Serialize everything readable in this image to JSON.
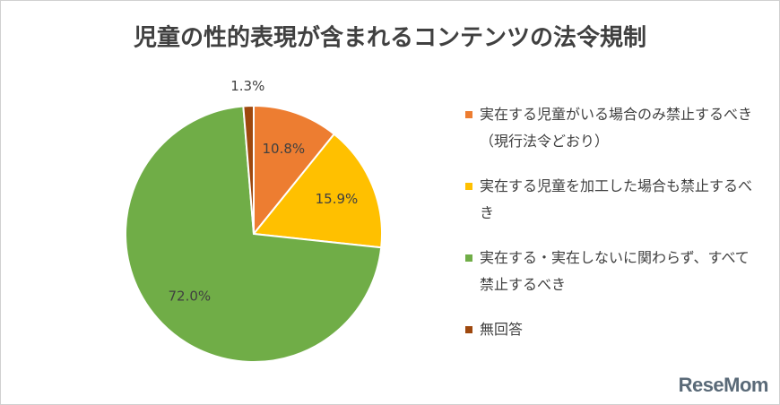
{
  "chart_data": {
    "type": "pie",
    "title": "児童の性的表現が含まれるコンテンツの法令規制",
    "categories": [
      "実在する児童がいる場合のみ禁止するべき（現行法令どおり）",
      "実在する児童を加工した場合も禁止するべき",
      "実在する・実在しないに関わらず、すべて禁止するべき",
      "無回答"
    ],
    "values": [
      10.8,
      15.9,
      72.0,
      1.3
    ],
    "value_labels": [
      "10.8%",
      "15.9%",
      "72.0%",
      "1.3%"
    ],
    "colors": [
      "#ed7d31",
      "#ffc000",
      "#70ad47",
      "#9e480e"
    ],
    "legend": "right",
    "watermark": "ReseMom"
  }
}
